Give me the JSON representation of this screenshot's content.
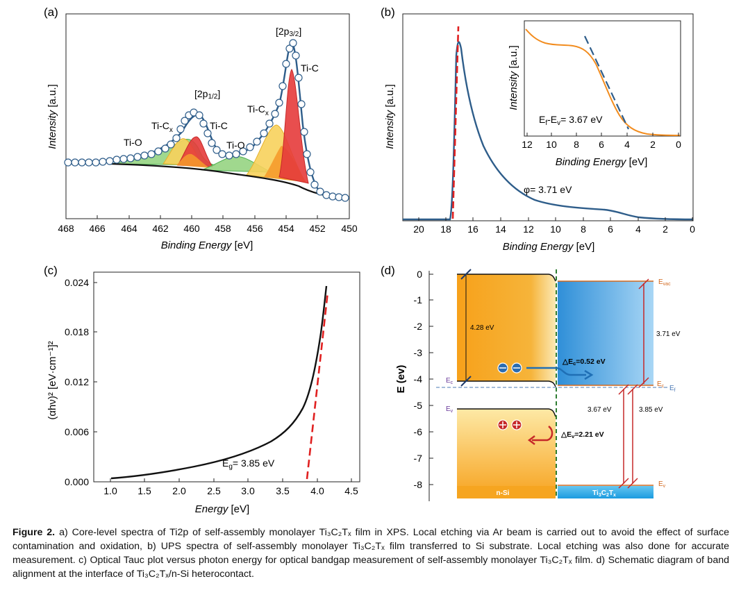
{
  "panels": {
    "a": {
      "label": "(a)",
      "xlabel_main": "Binding Energy",
      "xlabel_unit": " [eV]",
      "ylabel_main": "Intensity",
      "ylabel_unit": " [a.u.]",
      "xticks": [
        "468",
        "466",
        "464",
        "462",
        "460",
        "458",
        "456",
        "454",
        "452",
        "450"
      ],
      "annotations": {
        "p32": "[2p",
        "p32sub": "3/2",
        "p32end": "]",
        "p12": "[2p",
        "p12sub": "1/2",
        "p12end": "]",
        "tic1": "Ti-C",
        "tic2": "Ti-C",
        "ticx1": "Ti-C",
        "ticx2": "Ti-C",
        "ticx_sub": "x",
        "tio1": "Ti-O",
        "tio2": "Ti-O"
      }
    },
    "b": {
      "label": "(b)",
      "xlabel_main": "Binding Energy",
      "xlabel_unit": " [eV]",
      "ylabel_main": "Intensity",
      "ylabel_unit": " [a.u.]",
      "xticks": [
        "20",
        "18",
        "16",
        "14",
        "12",
        "10",
        "8",
        "6",
        "4",
        "2",
        "0"
      ],
      "phi": "φ= 3.71 eV",
      "inset": {
        "xticks": [
          "12",
          "10",
          "8",
          "6",
          "4",
          "2",
          "0"
        ],
        "xlabel_main": "Binding Energy",
        "xlabel_unit": " [eV]",
        "ylabel_main": "Intensity",
        "ylabel_unit": " [a.u.]",
        "ann_a": "E",
        "ann_a_sub": "f",
        "ann_b": "-E",
        "ann_b_sub": "v",
        "ann_c": "= 3.67 eV"
      }
    },
    "c": {
      "label": "(c)",
      "xlabel_main": "Energy",
      "xlabel_unit": " [eV]",
      "ylabel": "(αhν)² [eV·cm⁻¹]²",
      "xticks": [
        "1.0",
        "1.5",
        "2.0",
        "2.5",
        "3.0",
        "3.5",
        "4.0",
        "4.5"
      ],
      "yticks": [
        "0.000",
        "0.006",
        "0.012",
        "0.018",
        "0.024"
      ],
      "eg_a": "E",
      "eg_sub": "g",
      "eg_b": "= 3.85 eV"
    },
    "d": {
      "label": "(d)",
      "ylabel": "E (ev)",
      "yticks": [
        "0",
        "-1",
        "-2",
        "-3",
        "-4",
        "-5",
        "-6",
        "-7",
        "-8"
      ],
      "v428": "4.28 eV",
      "v371": "3.71 eV",
      "v367": "3.67 eV",
      "v385": "3.85 eV",
      "dec_a": "△E",
      "dec_sub": "c",
      "dec_b": "=0.52 eV",
      "dev_a": "△E",
      "dev_sub": "v",
      "dev_b": "=2.21 eV",
      "ec": "E",
      "ec_sub": "c",
      "ev": "E",
      "ev_sub": "v",
      "evac": "E",
      "evac_sub": "vac",
      "ef": "E",
      "ef_sub": "f",
      "ec2": "E",
      "ec2_sub": "c",
      "ev2": "E",
      "ev2_sub": "v",
      "nsi": "n-Si",
      "ti_a": "Ti",
      "ti_s1": "3",
      "ti_b": "C",
      "ti_s2": "2",
      "ti_c": "T",
      "ti_s3": "x"
    }
  },
  "chart_data": [
    {
      "type": "line",
      "panel": "a",
      "xlabel": "Binding Energy [eV]",
      "ylabel": "Intensity [a.u.]",
      "xlim": [
        468,
        450
      ],
      "series": [
        {
          "name": "Ti-C",
          "x": [
            454.8,
            454.1,
            453.7,
            453.4,
            453.0,
            452.6
          ],
          "y": [
            0.0,
            0.35,
            0.75,
            0.6,
            0.25,
            0.0
          ]
        },
        {
          "name": "Ti-Cx",
          "x": [
            456.2,
            455.4,
            454.7,
            454.0,
            453.3
          ],
          "y": [
            0.0,
            0.25,
            0.38,
            0.25,
            0.0
          ]
        },
        {
          "name": "Ti-O",
          "x": [
            459.5,
            458.0,
            457.2,
            456.3,
            455.5
          ],
          "y": [
            0.0,
            0.12,
            0.15,
            0.12,
            0.0
          ]
        }
      ]
    },
    {
      "type": "line",
      "panel": "b",
      "xlabel": "Binding Energy [eV]",
      "ylabel": "Intensity [a.u.]",
      "xlim": [
        21,
        0
      ],
      "series": [
        {
          "x": [
            18,
            17.3,
            17.0,
            16.5,
            15,
            13,
            11,
            9,
            7,
            6,
            5,
            4,
            3,
            2,
            0
          ],
          "y": [
            0.0,
            0.5,
            0.92,
            0.8,
            0.55,
            0.34,
            0.22,
            0.16,
            0.14,
            0.1,
            0.05,
            0.02,
            0.01,
            0.005,
            0.0
          ]
        }
      ]
    },
    {
      "type": "line",
      "panel": "b-inset",
      "xlabel": "Binding Energy [eV]",
      "ylabel": "Intensity [a.u.]",
      "xlim": [
        12,
        0
      ],
      "series": [
        {
          "x": [
            12,
            11,
            10,
            9,
            8,
            7,
            6,
            5,
            4,
            3,
            2,
            1,
            0
          ],
          "y": [
            0.98,
            0.9,
            0.88,
            0.86,
            0.85,
            0.8,
            0.62,
            0.38,
            0.15,
            0.04,
            0.01,
            0.0,
            0.0
          ]
        }
      ]
    },
    {
      "type": "line",
      "panel": "c",
      "xlabel": "Energy [eV]",
      "ylabel": "(αhν)² [eV·cm⁻¹]²",
      "xlim": [
        0.75,
        4.5
      ],
      "ylim": [
        0.0,
        0.025
      ],
      "series": [
        {
          "x": [
            1.0,
            1.5,
            2.0,
            2.5,
            3.0,
            3.3,
            3.5,
            3.7,
            3.85,
            3.95,
            4.05,
            4.12
          ],
          "y": [
            0.0004,
            0.0012,
            0.0021,
            0.0032,
            0.0045,
            0.0056,
            0.0068,
            0.009,
            0.0125,
            0.016,
            0.0205,
            0.0235
          ]
        }
      ]
    }
  ],
  "caption": {
    "lead": "Figure 2.",
    "text": "a) Core-level spectra of Ti2p of self-assembly monolayer Ti₃C₂Tₓ film in XPS. Local etching via Ar beam is carried out to avoid the effect of surface contamination and oxidation, b) UPS spectra of self-assembly monolayer Ti₃C₂Tₓ film transferred to Si substrate. Local etching was also done for accurate measurement. c) Optical Tauc plot versus photon energy for optical bandgap measurement of self-assembly monolayer Ti₃C₂Tₓ film. d) Schematic diagram of band alignment at the interface of Ti₃C₂Tₓ/n-Si heterocontact."
  }
}
